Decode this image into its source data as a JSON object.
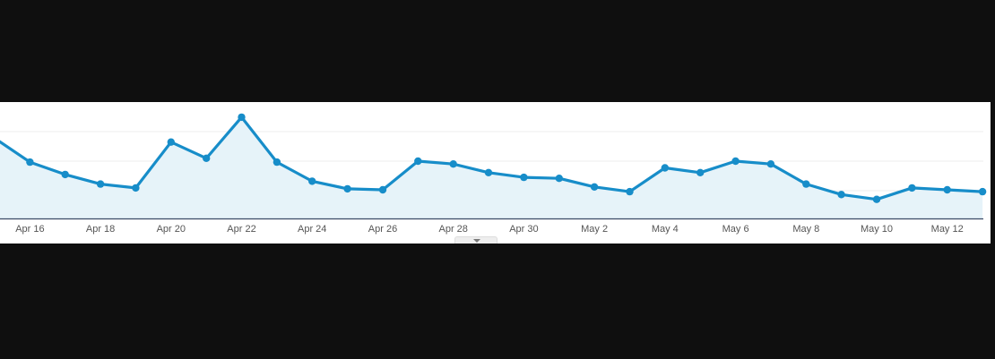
{
  "chart_data": {
    "type": "area",
    "x_tick_labels": [
      "Apr 16",
      "Apr 18",
      "Apr 20",
      "Apr 22",
      "Apr 24",
      "Apr 26",
      "Apr 28",
      "Apr 30",
      "May 2",
      "May 4",
      "May 6",
      "May 8",
      "May 10",
      "May 12"
    ],
    "series": [
      {
        "x": [
          "Apr 15",
          "Apr 16",
          "Apr 17",
          "Apr 18",
          "Apr 19",
          "Apr 20",
          "Apr 21",
          "Apr 22",
          "Apr 23",
          "Apr 24",
          "Apr 25",
          "Apr 26",
          "Apr 27",
          "Apr 28",
          "Apr 29",
          "Apr 30",
          "May 1",
          "May 2",
          "May 3",
          "May 4",
          "May 5",
          "May 6",
          "May 7",
          "May 8",
          "May 9",
          "May 10",
          "May 11",
          "May 12",
          "May 13"
        ],
        "values": [
          84,
          59,
          46,
          36,
          32,
          80,
          63,
          106,
          59,
          39,
          31,
          30,
          60,
          57,
          48,
          43,
          42,
          33,
          28,
          53,
          48,
          60,
          57,
          36,
          25,
          20,
          32,
          30,
          28
        ]
      }
    ],
    "ylim": [
      0,
      120
    ],
    "grid": true,
    "legend": "none",
    "line_color": "#178dc9",
    "fill_color": "#e6f3f9",
    "grid_color": "#ececec",
    "axis_color": "#3b4a66"
  }
}
